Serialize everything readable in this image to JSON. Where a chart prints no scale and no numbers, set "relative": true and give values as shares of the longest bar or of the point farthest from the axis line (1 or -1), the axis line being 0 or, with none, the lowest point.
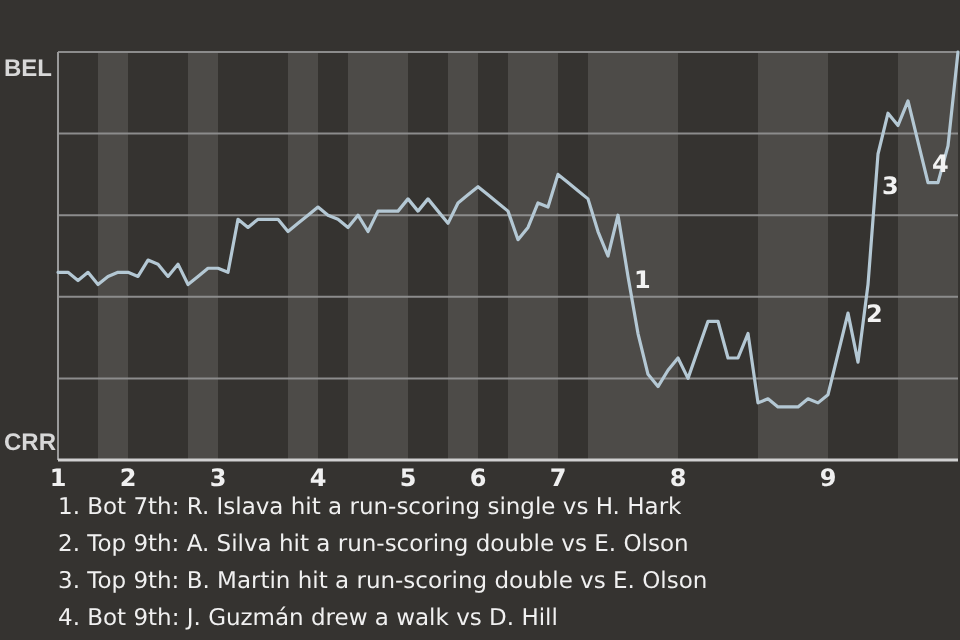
{
  "chart_data": {
    "type": "line",
    "relative": true,
    "categories": [
      "1",
      null,
      null,
      null,
      null,
      null,
      null,
      "2",
      null,
      null,
      null,
      null,
      null,
      null,
      null,
      null,
      "3",
      null,
      null,
      null,
      null,
      null,
      null,
      null,
      null,
      null,
      "4",
      null,
      null,
      null,
      null,
      null,
      null,
      null,
      null,
      "5",
      null,
      null,
      null,
      null,
      null,
      null,
      "6",
      null,
      null,
      null,
      null,
      null,
      null,
      null,
      "7",
      null,
      null,
      null,
      null,
      null,
      null,
      null,
      null,
      null,
      null,
      null,
      "8",
      null,
      null,
      null,
      null,
      null,
      null,
      null,
      null,
      null,
      null,
      null,
      null,
      null,
      null,
      "9",
      null,
      null,
      null,
      null,
      null,
      null,
      null,
      null,
      null,
      null,
      null,
      null,
      null
    ],
    "series": [
      {
        "color": "#b4c8d4",
        "values": [
          0.46,
          0.46,
          0.44,
          0.46,
          0.43,
          0.45,
          0.46,
          0.46,
          0.45,
          0.49,
          0.48,
          0.45,
          0.48,
          0.43,
          0.45,
          0.47,
          0.47,
          0.46,
          0.59,
          0.57,
          0.59,
          0.59,
          0.59,
          0.56,
          0.58,
          0.6,
          0.62,
          0.6,
          0.59,
          0.57,
          0.6,
          0.56,
          0.61,
          0.61,
          0.61,
          0.64,
          0.61,
          0.64,
          0.61,
          0.58,
          0.63,
          0.65,
          0.67,
          0.65,
          0.63,
          0.61,
          0.54,
          0.57,
          0.63,
          0.62,
          0.7,
          0.68,
          0.66,
          0.64,
          0.56,
          0.5,
          0.6,
          0.45,
          0.31,
          0.21,
          0.18,
          0.22,
          0.25,
          0.2,
          0.27,
          0.34,
          0.34,
          0.25,
          0.25,
          0.31,
          0.14,
          0.15,
          0.13,
          0.13,
          0.13,
          0.15,
          0.14,
          0.16,
          0.26,
          0.36,
          0.24,
          0.43,
          0.75,
          0.85,
          0.82,
          0.88,
          0.78,
          0.68,
          0.68,
          0.77,
          1.0
        ]
      }
    ],
    "grid": "y",
    "marker": "none",
    "line_style": "solid",
    "annotations": [
      "BEL",
      "CRR",
      "1",
      "2",
      "3",
      "4",
      "1. Bot 7th: R. Islava hit a run-scoring single vs H. Hark",
      "2. Top 9th: A. Silva hit a run-scoring double vs E. Olson",
      "3. Top 9th: B. Martin hit a run-scoring double vs E. Olson",
      "4. Bot 9th: J. Guzmán drew a walk vs D. Hill"
    ]
  }
}
